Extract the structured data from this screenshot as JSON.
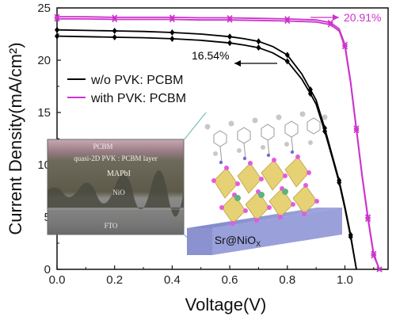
{
  "chart_data": {
    "type": "line",
    "xlabel": "Voltage(V)",
    "ylabel": "Current Density(mA/cm²)",
    "xlim": [
      0,
      1.15
    ],
    "ylim": [
      0,
      25
    ],
    "xticks": [
      "0.0",
      "0.2",
      "0.4",
      "0.6",
      "0.8",
      "1.0"
    ],
    "yticks": [
      "0",
      "5",
      "10",
      "15",
      "20",
      "25"
    ],
    "grid": false,
    "legend_position": "left",
    "series": [
      {
        "name": "w/o PVK: PCBM",
        "color": "#000000",
        "marker": "diamond",
        "curves": [
          {
            "x": [
              0.0,
              0.1,
              0.2,
              0.3,
              0.4,
              0.5,
              0.6,
              0.65,
              0.7,
              0.75,
              0.8,
              0.85,
              0.88,
              0.9,
              0.93,
              0.96,
              0.98,
              1.0,
              1.02,
              1.04
            ],
            "y": [
              22.9,
              22.85,
              22.8,
              22.75,
              22.65,
              22.5,
              22.25,
              22.05,
              21.8,
              21.3,
              20.5,
              18.7,
              17.2,
              16.2,
              13.5,
              10.5,
              8.5,
              6.0,
              3.3,
              0
            ]
          },
          {
            "x": [
              0.0,
              0.1,
              0.2,
              0.3,
              0.4,
              0.5,
              0.6,
              0.65,
              0.7,
              0.75,
              0.8,
              0.85,
              0.88,
              0.9,
              0.93,
              0.96,
              0.98,
              1.0,
              1.02,
              1.04
            ],
            "y": [
              22.3,
              22.25,
              22.2,
              22.15,
              22.05,
              21.9,
              21.65,
              21.45,
              21.2,
              20.7,
              19.9,
              18.2,
              16.8,
              15.8,
              13.2,
              10.3,
              8.3,
              5.8,
              3.1,
              0
            ]
          }
        ]
      },
      {
        "name": "with PVK: PCBM",
        "color": "#cc33cc",
        "marker": "x",
        "curves": [
          {
            "x": [
              0.0,
              0.1,
              0.2,
              0.3,
              0.4,
              0.5,
              0.6,
              0.7,
              0.8,
              0.9,
              0.95,
              0.98,
              1.0,
              1.02,
              1.04,
              1.06,
              1.08,
              1.1,
              1.12
            ],
            "y": [
              24.15,
              24.15,
              24.1,
              24.1,
              24.1,
              24.05,
              24.05,
              24.0,
              23.95,
              23.85,
              23.6,
              23.0,
              21.5,
              18.0,
              13.5,
              9.0,
              5.0,
              1.5,
              0
            ]
          },
          {
            "x": [
              0.0,
              0.1,
              0.2,
              0.3,
              0.4,
              0.5,
              0.6,
              0.7,
              0.8,
              0.9,
              0.95,
              0.98,
              1.0,
              1.02,
              1.04,
              1.06,
              1.08,
              1.1,
              1.12
            ],
            "y": [
              23.95,
              23.95,
              23.9,
              23.9,
              23.9,
              23.85,
              23.85,
              23.8,
              23.75,
              23.65,
              23.4,
              22.8,
              21.3,
              17.8,
              13.3,
              8.8,
              4.8,
              1.3,
              0
            ]
          }
        ]
      }
    ],
    "annotations": [
      {
        "text": "20.91%",
        "color": "#cc33cc"
      },
      {
        "text": "16.54%",
        "color": "#000000"
      }
    ],
    "inset_photo_labels": [
      "PCBM",
      "quasi-2D PVK : PCBM layer",
      "MAPbI",
      "NiO",
      "FTO"
    ],
    "inset_structure_label": "Sr@NiO",
    "inset_structure_subscript": "X"
  }
}
